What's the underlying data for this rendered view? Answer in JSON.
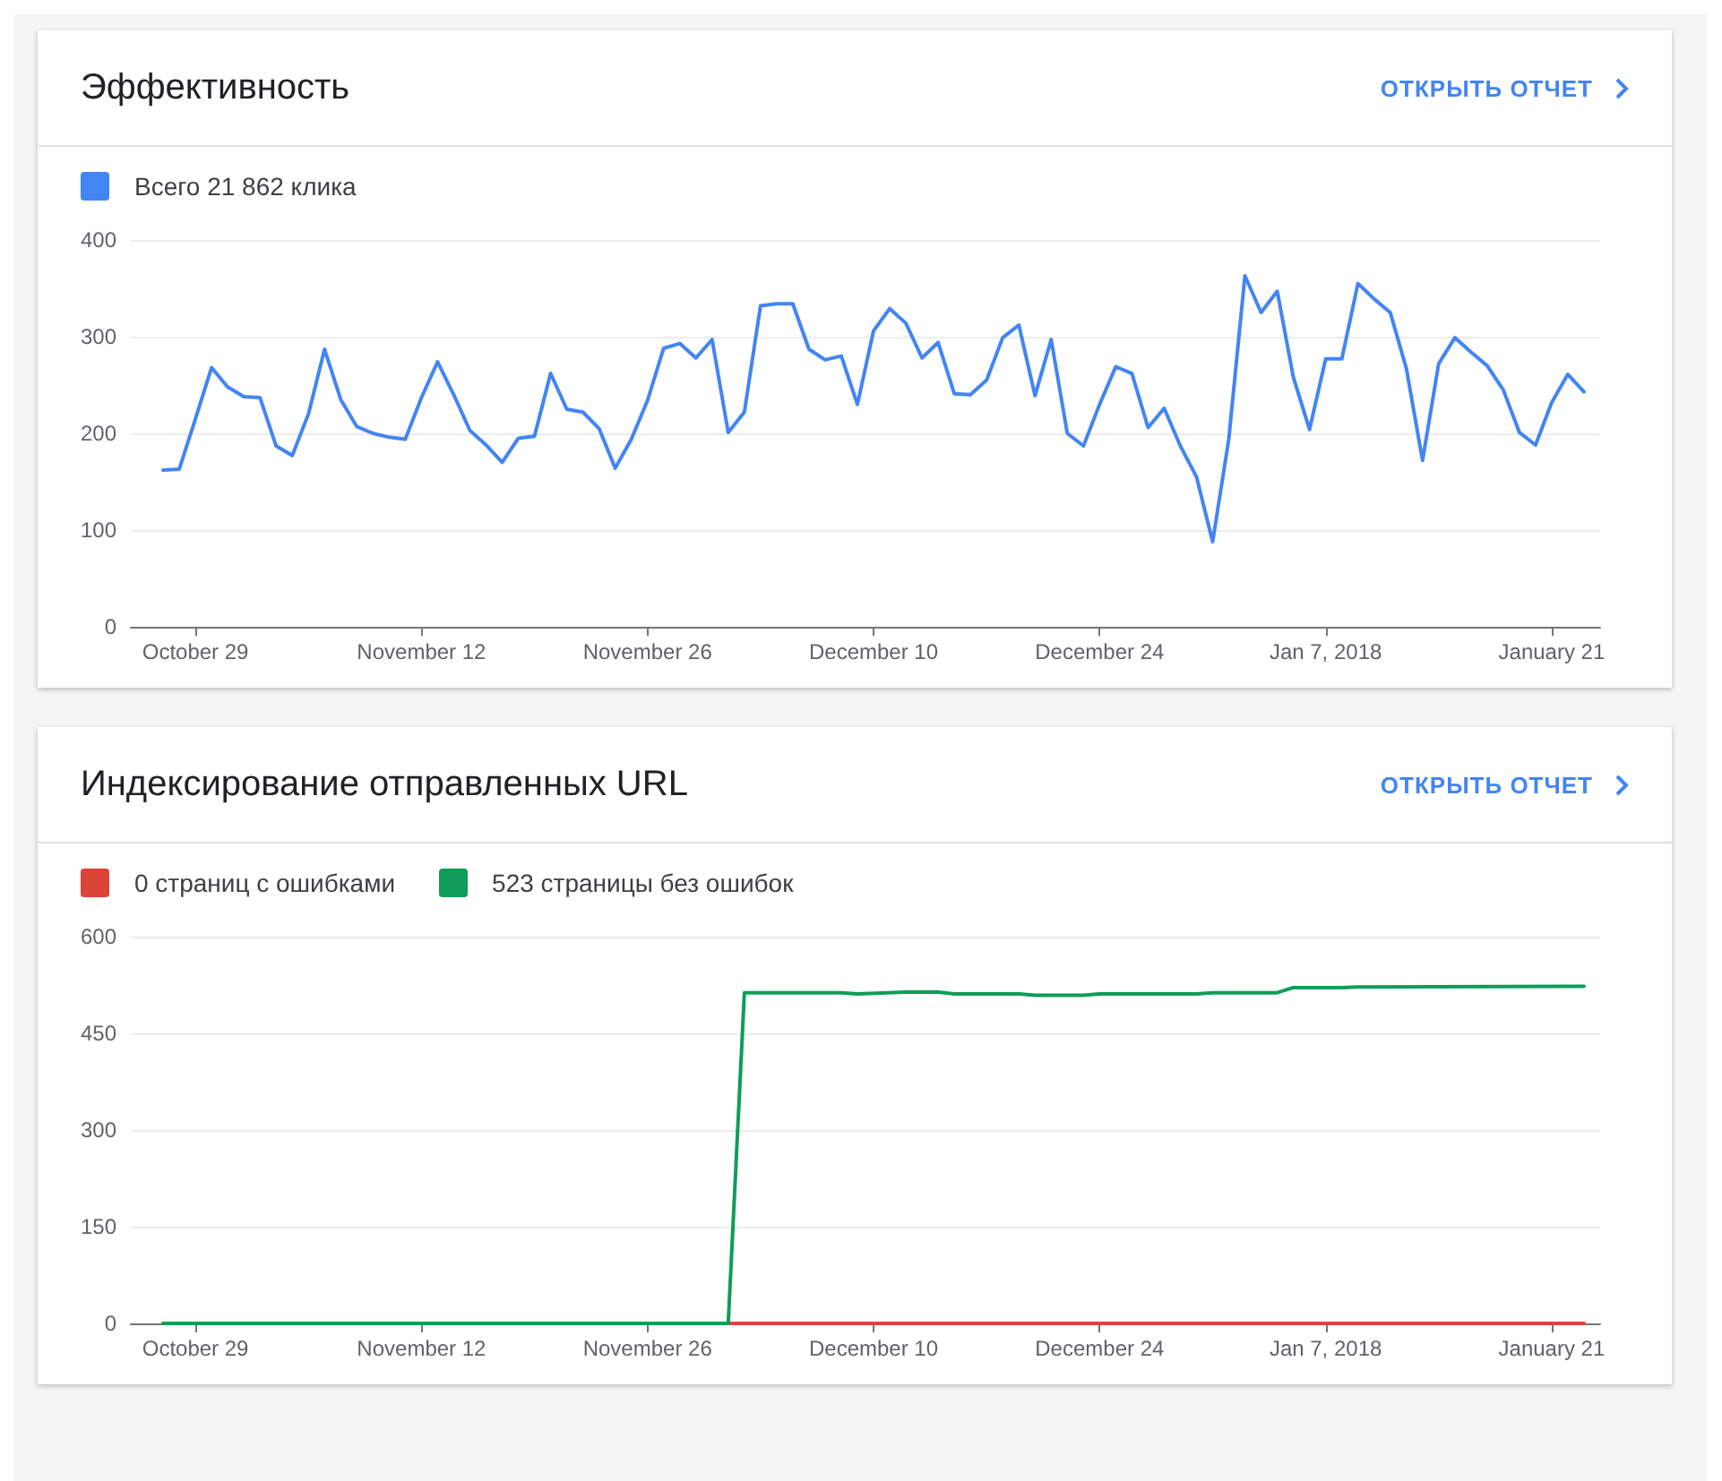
{
  "chart_data": [
    {
      "type": "line",
      "title": "Эффективность",
      "annotations": [
        "ОТКРЫТЬ ОТЧЕТ"
      ],
      "legend": "top left",
      "grid": "y",
      "marker": "none",
      "line_style": "solid",
      "x": [
        "2017-10-27",
        "2017-10-28",
        "2017-10-29",
        "2017-10-30",
        "2017-10-31",
        "2017-11-01",
        "2017-11-02",
        "2017-11-03",
        "2017-11-04",
        "2017-11-05",
        "2017-11-06",
        "2017-11-07",
        "2017-11-08",
        "2017-11-09",
        "2017-11-10",
        "2017-11-11",
        "2017-11-12",
        "2017-11-13",
        "2017-11-14",
        "2017-11-15",
        "2017-11-16",
        "2017-11-17",
        "2017-11-18",
        "2017-11-19",
        "2017-11-20",
        "2017-11-21",
        "2017-11-22",
        "2017-11-23",
        "2017-11-24",
        "2017-11-25",
        "2017-11-26",
        "2017-11-27",
        "2017-11-28",
        "2017-11-29",
        "2017-11-30",
        "2017-12-01",
        "2017-12-02",
        "2017-12-03",
        "2017-12-04",
        "2017-12-05",
        "2017-12-06",
        "2017-12-07",
        "2017-12-08",
        "2017-12-09",
        "2017-12-10",
        "2017-12-11",
        "2017-12-12",
        "2017-12-13",
        "2017-12-14",
        "2017-12-15",
        "2017-12-16",
        "2017-12-17",
        "2017-12-18",
        "2017-12-19",
        "2017-12-20",
        "2017-12-21",
        "2017-12-22",
        "2017-12-23",
        "2017-12-24",
        "2017-12-25",
        "2017-12-26",
        "2017-12-27",
        "2017-12-28",
        "2017-12-29",
        "2017-12-30",
        "2017-12-31",
        "2018-01-01",
        "2018-01-02",
        "2018-01-03",
        "2018-01-04",
        "2018-01-05",
        "2018-01-06",
        "2018-01-07",
        "2018-01-08",
        "2018-01-09",
        "2018-01-10",
        "2018-01-11",
        "2018-01-12",
        "2018-01-13",
        "2018-01-14",
        "2018-01-15",
        "2018-01-16",
        "2018-01-17",
        "2018-01-18",
        "2018-01-19",
        "2018-01-20",
        "2018-01-21",
        "2018-01-22",
        "2018-01-23"
      ],
      "series": [
        {
          "name": "Всего 21 862 клика",
          "color": "#4285f4",
          "values": [
            162,
            163,
            215,
            268,
            248,
            238,
            237,
            187,
            177,
            220,
            287,
            235,
            207,
            200,
            196,
            194,
            237,
            274,
            240,
            203,
            188,
            170,
            195,
            197,
            262,
            225,
            222,
            205,
            164,
            194,
            234,
            288,
            293,
            278,
            297,
            201,
            222,
            332,
            334,
            334,
            287,
            276,
            280,
            230,
            306,
            329,
            314,
            278,
            294,
            241,
            240,
            255,
            299,
            312,
            239,
            297,
            200,
            187,
            230,
            269,
            262,
            206,
            226,
            187,
            155,
            88,
            194,
            363,
            325,
            347,
            258,
            204,
            277,
            277,
            355,
            339,
            325,
            267,
            172,
            272,
            299,
            284,
            270,
            245,
            201,
            188,
            232,
            261,
            243
          ]
        }
      ],
      "xlim": [
        "2017-10-25",
        "2018-01-24"
      ],
      "xticks": [
        {
          "value": "2017-10-29",
          "label": "October 29"
        },
        {
          "value": "2017-11-12",
          "label": "November 12"
        },
        {
          "value": "2017-11-26",
          "label": "November 26"
        },
        {
          "value": "2017-12-10",
          "label": "December 10"
        },
        {
          "value": "2017-12-24",
          "label": "December 24"
        },
        {
          "value": "2018-01-07",
          "label": "Jan 7, 2018"
        },
        {
          "value": "2018-01-21",
          "label": "January 21"
        }
      ],
      "ylim": [
        0,
        400
      ],
      "yticks": [
        0,
        100,
        200,
        300,
        400
      ]
    },
    {
      "type": "line",
      "title": "Индексирование отправленных URL",
      "annotations": [
        "ОТКРЫТЬ ОТЧЕТ"
      ],
      "legend": "top left",
      "grid": "y",
      "marker": "none",
      "line_style": "solid",
      "series": [
        {
          "name": "0 страниц с ошибками",
          "color": "#db4437",
          "x": [
            "2017-10-27",
            "2018-01-23"
          ],
          "values": [
            0,
            0
          ]
        },
        {
          "name": "523 страницы без ошибок",
          "color": "#0f9d58",
          "x": [
            "2017-10-27",
            "2017-12-01",
            "2017-12-02",
            "2017-12-08",
            "2017-12-09",
            "2017-12-12",
            "2017-12-14",
            "2017-12-15",
            "2017-12-19",
            "2017-12-20",
            "2017-12-23",
            "2017-12-24",
            "2017-12-30",
            "2017-12-31",
            "2018-01-04",
            "2018-01-05",
            "2018-01-08",
            "2018-01-09",
            "2018-01-23"
          ],
          "values": [
            0,
            0,
            513,
            513,
            511,
            514,
            514,
            511,
            511,
            509,
            509,
            511,
            511,
            513,
            513,
            521,
            521,
            522,
            523
          ]
        }
      ],
      "xlim": [
        "2017-10-25",
        "2018-01-24"
      ],
      "xticks": [
        {
          "value": "2017-10-29",
          "label": "October 29"
        },
        {
          "value": "2017-11-12",
          "label": "November 12"
        },
        {
          "value": "2017-11-26",
          "label": "November 26"
        },
        {
          "value": "2017-12-10",
          "label": "December 10"
        },
        {
          "value": "2017-12-24",
          "label": "December 24"
        },
        {
          "value": "2018-01-07",
          "label": "Jan 7, 2018"
        },
        {
          "value": "2018-01-21",
          "label": "January 21"
        }
      ],
      "ylim": [
        0,
        600
      ],
      "yticks": [
        0,
        150,
        300,
        450,
        600
      ]
    }
  ]
}
